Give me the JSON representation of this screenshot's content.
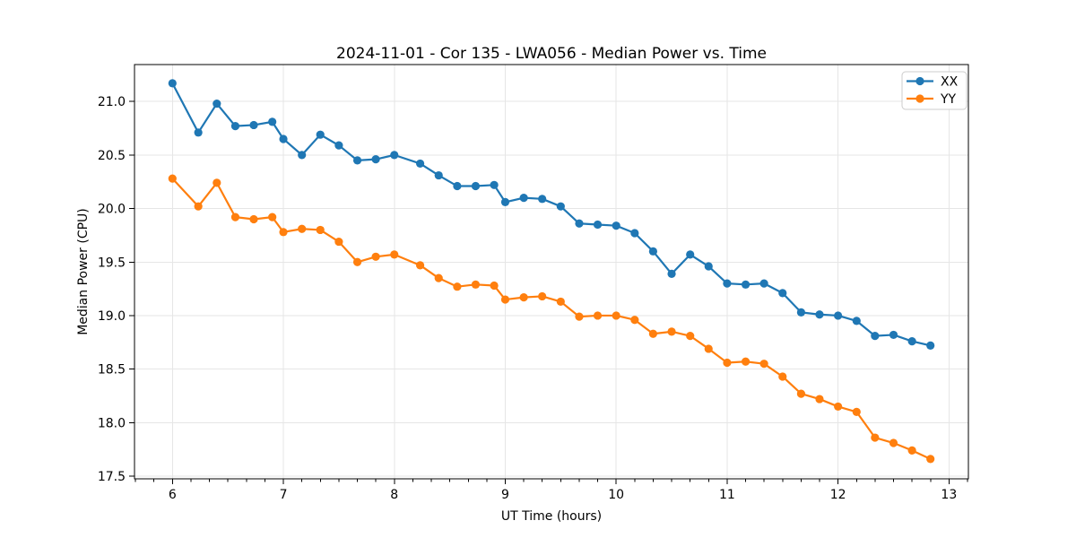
{
  "figure": {
    "background": "#ffffff"
  },
  "chart_data": {
    "type": "line",
    "title": "2024-11-01 - Cor 135 - LWA056 - Median Power vs. Time",
    "xlabel": "UT Time (hours)",
    "ylabel": "Median Power (CPU)",
    "xlim": [
      5.658,
      13.175
    ],
    "ylim": [
      17.475,
      21.345
    ],
    "xticks": [
      6,
      7,
      8,
      9,
      10,
      11,
      12,
      13
    ],
    "x_minor_step": 0.16667,
    "yticks": [
      17.5,
      18.0,
      18.5,
      19.0,
      19.5,
      20.0,
      20.5,
      21.0
    ],
    "grid": true,
    "legend_position": "upper right",
    "x": [
      6.0,
      6.233,
      6.4,
      6.567,
      6.733,
      6.9,
      7.0,
      7.167,
      7.333,
      7.5,
      7.667,
      7.833,
      8.0,
      8.233,
      8.4,
      8.567,
      8.733,
      8.9,
      9.0,
      9.167,
      9.333,
      9.5,
      9.667,
      9.833,
      10.0,
      10.167,
      10.333,
      10.5,
      10.667,
      10.833,
      11.0,
      11.167,
      11.333,
      11.5,
      11.667,
      11.833,
      12.0,
      12.167,
      12.333,
      12.5,
      12.667,
      12.833
    ],
    "series": [
      {
        "name": "XX",
        "color": "#1f77b4",
        "marker": "circle",
        "values": [
          21.17,
          20.71,
          20.98,
          20.77,
          20.78,
          20.81,
          20.65,
          20.5,
          20.69,
          20.59,
          20.45,
          20.46,
          20.5,
          20.42,
          20.31,
          20.21,
          20.21,
          20.22,
          20.06,
          20.1,
          20.09,
          20.02,
          19.86,
          19.85,
          19.84,
          19.77,
          19.6,
          19.39,
          19.57,
          19.46,
          19.3,
          19.29,
          19.3,
          19.21,
          19.03,
          19.01,
          19.0,
          18.95,
          18.81,
          18.82,
          18.76,
          18.72
        ]
      },
      {
        "name": "YY",
        "color": "#ff7f0e",
        "marker": "circle",
        "values": [
          20.28,
          20.02,
          20.24,
          19.92,
          19.9,
          19.92,
          19.78,
          19.81,
          19.8,
          19.69,
          19.5,
          19.55,
          19.57,
          19.47,
          19.35,
          19.27,
          19.29,
          19.28,
          19.15,
          19.17,
          19.18,
          19.13,
          18.99,
          19.0,
          19.0,
          18.96,
          18.83,
          18.85,
          18.81,
          18.69,
          18.56,
          18.57,
          18.55,
          18.43,
          18.27,
          18.22,
          18.15,
          18.1,
          17.86,
          17.81,
          17.74,
          17.66
        ]
      }
    ],
    "colors": {
      "grid": "#e6e6e6",
      "axis": "#000000",
      "legend_border": "#cccccc",
      "legend_background": "#ffffff"
    }
  }
}
